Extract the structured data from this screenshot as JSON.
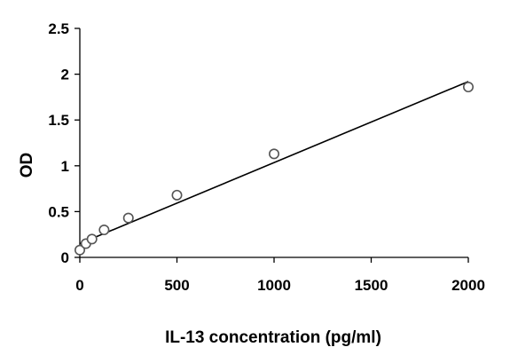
{
  "chart_data": {
    "type": "scatter",
    "title": "",
    "xlabel": "IL-13 concentration (pg/ml)",
    "ylabel": "OD",
    "xlim": [
      0,
      2000
    ],
    "ylim": [
      0,
      2.5
    ],
    "x_ticks": [
      "0",
      "500",
      "1000",
      "1500",
      "2000"
    ],
    "y_ticks": [
      "0",
      "0.5",
      "1",
      "1.5",
      "2",
      "2.5"
    ],
    "grid": false,
    "legend": "none",
    "series": [
      {
        "marker": "open-circle",
        "points": [
          {
            "x": 0,
            "y": 0.08
          },
          {
            "x": 31.25,
            "y": 0.15
          },
          {
            "x": 62.5,
            "y": 0.2
          },
          {
            "x": 125,
            "y": 0.3
          },
          {
            "x": 250,
            "y": 0.43
          },
          {
            "x": 500,
            "y": 0.68
          },
          {
            "x": 1000,
            "y": 1.13
          },
          {
            "x": 2000,
            "y": 1.86
          }
        ]
      }
    ],
    "trendline": {
      "type": "linear",
      "x": [
        0,
        2000
      ],
      "y": [
        0.15,
        1.92
      ]
    }
  }
}
